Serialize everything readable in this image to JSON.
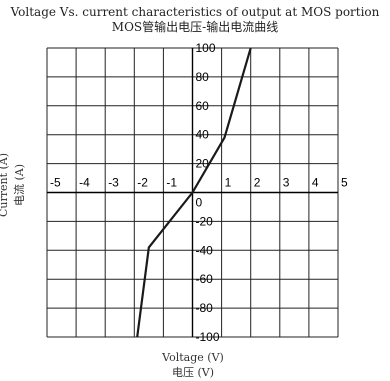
{
  "chart_data": {
    "type": "line",
    "title": "Voltage Vs. current characteristics of output at MOS portion",
    "subtitle": "MOS管输出电压-输出电流曲线",
    "xlabel": "Voltage (V)",
    "xlabel_cn": "电压 (V)",
    "ylabel": "Current (A)",
    "ylabel_cn": "电流 (A)",
    "xlim": [
      -5,
      5
    ],
    "ylim": [
      -100,
      100
    ],
    "grid": true,
    "x_ticks": [
      "-5",
      "-4",
      "-3",
      "-2",
      "-1",
      "0",
      "1",
      "2",
      "3",
      "4",
      "5"
    ],
    "y_ticks": [
      "100",
      "80",
      "60",
      "40",
      "20",
      "-20",
      "-40",
      "-60",
      "-80",
      "-100"
    ],
    "series": [
      {
        "x": [
          -1.9,
          -1.5,
          0,
          1.1,
          2.0
        ],
        "y": [
          -100,
          -38,
          0,
          38,
          100
        ]
      }
    ],
    "colors": {
      "line": "#1a1a1a",
      "grid": "#222222"
    }
  }
}
